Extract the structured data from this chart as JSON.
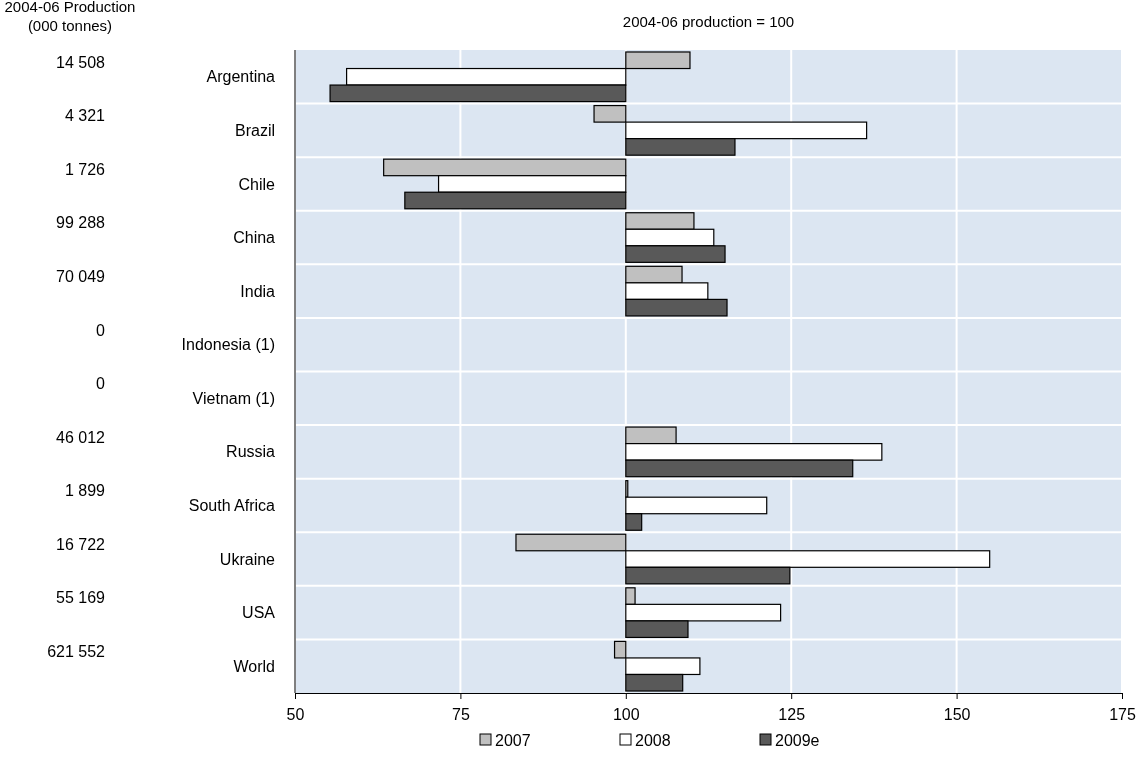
{
  "chart_data": {
    "type": "bar",
    "orientation": "horizontal",
    "subtitle": "2004-06 production = 100",
    "categories": [
      "Argentina",
      "Brazil",
      "Chile",
      "China",
      "India",
      "Indonesia (1)",
      "Vietnam (1)",
      "Russia",
      "South Africa",
      "Ukraine",
      "USA",
      "World"
    ],
    "series": [
      {
        "name": "2007",
        "color": "#c0c0c0",
        "base": [
          100,
          100,
          100,
          100,
          100,
          null,
          null,
          100,
          100,
          100,
          100,
          100
        ],
        "values": [
          9.7,
          -4.8,
          -36.6,
          10.3,
          8.5,
          null,
          null,
          7.6,
          0.3,
          -16.6,
          1.4,
          -1.7
        ]
      },
      {
        "name": "2008",
        "color": "#ffffff",
        "base": [
          100,
          100,
          100,
          100,
          100,
          null,
          null,
          100,
          100,
          100,
          100,
          100
        ],
        "values": [
          -42.2,
          36.4,
          -28.3,
          13.3,
          12.4,
          null,
          null,
          38.7,
          21.3,
          55.0,
          23.4,
          11.2
        ]
      },
      {
        "name": "2009e",
        "color": "#595959",
        "base": [
          100,
          100,
          100,
          100,
          100,
          null,
          null,
          100,
          100,
          100,
          100,
          100
        ],
        "values": [
          -44.7,
          16.5,
          -33.4,
          15.0,
          15.3,
          null,
          null,
          34.3,
          2.4,
          24.8,
          9.4,
          8.6
        ]
      }
    ],
    "xlim": [
      50,
      175
    ],
    "xticks": [
      50,
      75,
      100,
      125,
      150,
      175
    ],
    "grid": true,
    "legend": "bottom",
    "annotations": [
      "2004-06 Production (000 tonnes)",
      "14 508",
      "4 321",
      "1 726",
      "99 288",
      "70 049",
      "0",
      "0",
      "46 012",
      "1 899",
      "16 722",
      "55 169",
      "621 552"
    ]
  }
}
